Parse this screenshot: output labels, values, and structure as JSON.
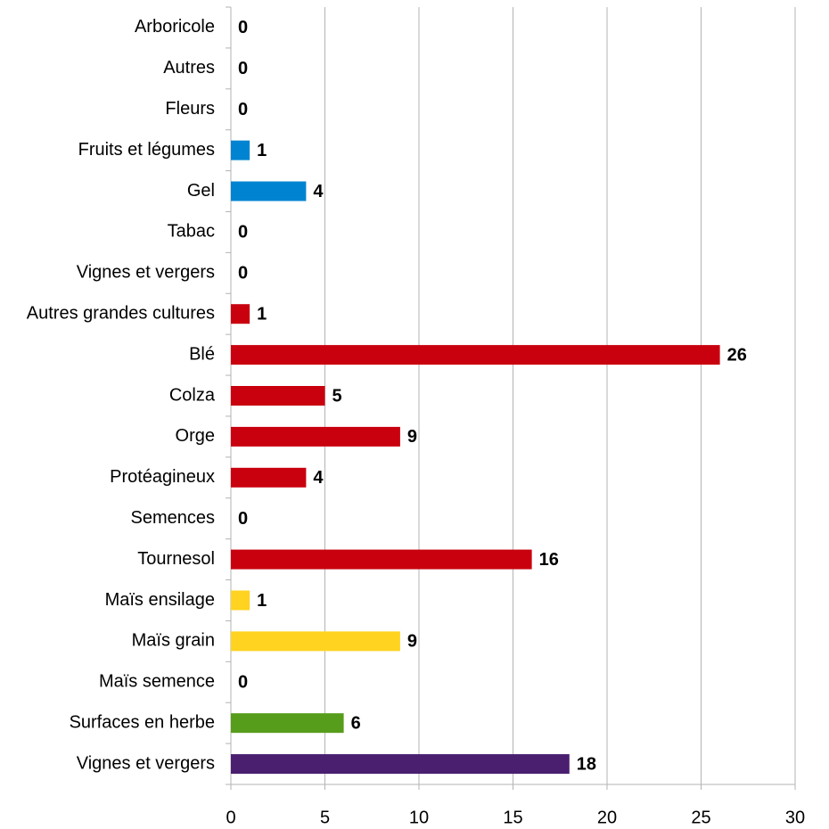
{
  "chart_data": {
    "type": "bar",
    "orientation": "horizontal",
    "categories": [
      "Arboricole",
      "Autres",
      "Fleurs",
      "Fruits et légumes",
      "Gel",
      "Tabac",
      "Vignes et vergers",
      "Autres grandes cultures",
      "Blé",
      "Colza",
      "Orge",
      "Protéagineux",
      "Semences",
      "Tournesol",
      "Maïs ensilage",
      "Maïs grain",
      "Maïs semence",
      "Surfaces en herbe",
      "Vignes et vergers"
    ],
    "values": [
      0,
      0,
      0,
      1,
      4,
      0,
      0,
      1,
      26,
      5,
      9,
      4,
      0,
      16,
      1,
      9,
      0,
      6,
      18
    ],
    "colors": [
      "#0084d1",
      "#0084d1",
      "#0084d1",
      "#0084d1",
      "#0084d1",
      "#0084d1",
      "#0084d1",
      "#c9000e",
      "#c9000e",
      "#c9000e",
      "#c9000e",
      "#c9000e",
      "#c9000e",
      "#c9000e",
      "#ffd320",
      "#ffd320",
      "#ffd320",
      "#579d1c",
      "#4b1f6f"
    ],
    "xlim": [
      0,
      30
    ],
    "xticks": [
      0,
      5,
      10,
      15,
      20,
      25,
      30
    ],
    "grid": true
  }
}
